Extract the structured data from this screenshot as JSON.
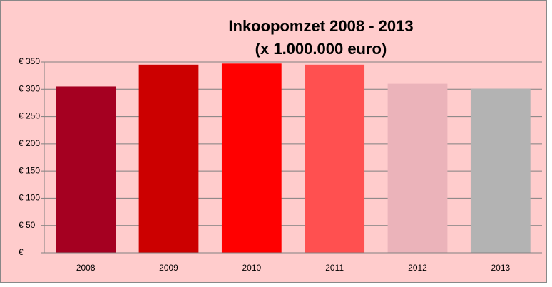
{
  "chart_data": {
    "type": "bar",
    "title": [
      "Inkoopomzet 2008 - 2013",
      "(x 1.000.000 euro)"
    ],
    "categories": [
      "2008",
      "2009",
      "2010",
      "2011",
      "2012",
      "2013"
    ],
    "values": [
      305,
      345,
      347,
      345,
      310,
      301
    ],
    "colors": [
      "#a50021",
      "#cc0000",
      "#ff0000",
      "#ff5050",
      "#ebb3ba",
      "#b3b3b3"
    ],
    "ylim": [
      0,
      350
    ],
    "yticks": [
      {
        "value": 0,
        "label": "€"
      },
      {
        "value": 50,
        "label": "€ 50"
      },
      {
        "value": 100,
        "label": "€ 100"
      },
      {
        "value": 150,
        "label": "€ 150"
      },
      {
        "value": 200,
        "label": "€ 200"
      },
      {
        "value": 250,
        "label": "€ 250"
      },
      {
        "value": 300,
        "label": "€ 300"
      },
      {
        "value": 350,
        "label": "€ 350"
      }
    ],
    "grid": true
  }
}
